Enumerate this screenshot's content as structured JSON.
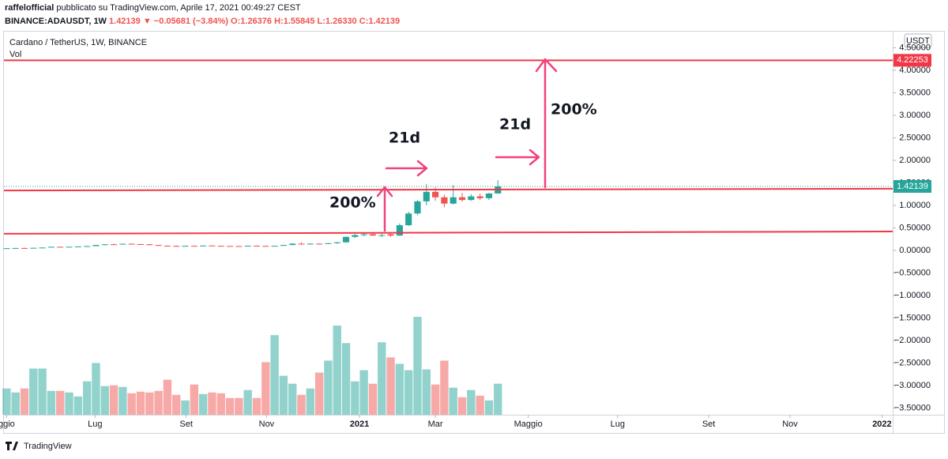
{
  "header": {
    "author": "raffelofficial",
    "published": "pubblicato su TradingView.com, Aprile 17, 2021 00:49:27 CEST",
    "symbol": "BINANCE:ADAUSDT, 1W",
    "last": "1.42139",
    "change": "▼ −0.05681 (−3.84%)",
    "o": "O:1.26376",
    "h": "H:1.55845",
    "l": "L:1.26330",
    "c": "C:1.42139"
  },
  "footer": {
    "brand": "TradingView"
  },
  "chart_data": {
    "type": "candlestick",
    "legend": "Cardano / TetherUS, 1W, BINANCE",
    "volume_label": "Vol",
    "currency": "USDT",
    "up_color": "#26a69a",
    "down_color": "#ef5350",
    "level_color": "#f23645",
    "arrow_color": "#f0437d",
    "x": [
      0,
      1,
      2,
      3,
      4,
      5,
      6,
      7,
      8,
      9,
      10,
      11,
      12,
      13,
      14,
      15,
      16,
      17,
      18,
      19,
      20,
      21,
      22,
      23,
      24,
      25,
      26,
      27,
      28,
      29,
      30,
      31,
      32,
      33,
      34,
      35,
      36,
      37,
      38,
      39,
      40,
      41,
      42,
      43,
      44,
      45,
      46,
      47,
      48,
      49,
      50,
      51,
      52,
      53,
      54,
      55
    ],
    "open": [
      0.048,
      0.05,
      0.054,
      0.052,
      0.058,
      0.064,
      0.08,
      0.078,
      0.082,
      0.088,
      0.096,
      0.12,
      0.136,
      0.132,
      0.148,
      0.14,
      0.136,
      0.12,
      0.104,
      0.1,
      0.096,
      0.102,
      0.1,
      0.108,
      0.102,
      0.098,
      0.096,
      0.094,
      0.104,
      0.1,
      0.098,
      0.102,
      0.12,
      0.15,
      0.14,
      0.15,
      0.148,
      0.16,
      0.18,
      0.3,
      0.34,
      0.36,
      0.33,
      0.36,
      0.33,
      0.56,
      0.82,
      1.09,
      1.3,
      1.18,
      1.04,
      1.18,
      1.12,
      1.2,
      1.16,
      1.26376
    ],
    "high": [
      0.052,
      0.056,
      0.058,
      0.06,
      0.066,
      0.082,
      0.086,
      0.084,
      0.092,
      0.1,
      0.124,
      0.14,
      0.15,
      0.152,
      0.156,
      0.148,
      0.14,
      0.124,
      0.112,
      0.108,
      0.106,
      0.108,
      0.112,
      0.112,
      0.106,
      0.102,
      0.1,
      0.108,
      0.11,
      0.104,
      0.104,
      0.124,
      0.16,
      0.18,
      0.16,
      0.158,
      0.164,
      0.19,
      0.31,
      0.37,
      0.4,
      0.39,
      0.38,
      0.38,
      0.6,
      0.86,
      1.12,
      1.47,
      1.4,
      1.24,
      1.45,
      1.28,
      1.25,
      1.26,
      1.28,
      1.55845
    ],
    "low": [
      0.044,
      0.048,
      0.05,
      0.05,
      0.055,
      0.062,
      0.072,
      0.074,
      0.078,
      0.084,
      0.094,
      0.114,
      0.128,
      0.128,
      0.13,
      0.13,
      0.11,
      0.098,
      0.092,
      0.092,
      0.09,
      0.096,
      0.098,
      0.098,
      0.094,
      0.092,
      0.088,
      0.092,
      0.096,
      0.094,
      0.094,
      0.1,
      0.118,
      0.126,
      0.132,
      0.136,
      0.14,
      0.15,
      0.17,
      0.28,
      0.31,
      0.32,
      0.3,
      0.3,
      0.32,
      0.54,
      0.78,
      1.0,
      1.1,
      0.96,
      1.02,
      1.08,
      1.1,
      1.12,
      1.12,
      1.2633
    ],
    "close": [
      0.05,
      0.054,
      0.052,
      0.058,
      0.064,
      0.08,
      0.078,
      0.082,
      0.088,
      0.096,
      0.12,
      0.136,
      0.132,
      0.148,
      0.14,
      0.136,
      0.12,
      0.104,
      0.1,
      0.096,
      0.102,
      0.1,
      0.108,
      0.102,
      0.098,
      0.096,
      0.094,
      0.104,
      0.1,
      0.098,
      0.102,
      0.12,
      0.15,
      0.14,
      0.15,
      0.148,
      0.16,
      0.18,
      0.3,
      0.34,
      0.36,
      0.33,
      0.34,
      0.33,
      0.56,
      0.82,
      1.09,
      1.3,
      1.18,
      1.04,
      1.18,
      1.12,
      1.2,
      1.16,
      1.26376,
      1.42139
    ],
    "volume": [
      33,
      28,
      33,
      58,
      58,
      30,
      30,
      28,
      23,
      42,
      65,
      36,
      37,
      35,
      27,
      29,
      28,
      30,
      44,
      25,
      18,
      38,
      26,
      28,
      27,
      21,
      21,
      31,
      21,
      66,
      100,
      49,
      39,
      25,
      33,
      53,
      68,
      112,
      90,
      42,
      56,
      39,
      91,
      72,
      64,
      56,
      123,
      57,
      38,
      68,
      34,
      22,
      31,
      24,
      18,
      39
    ],
    "xlim": [
      -0.3,
      99.2
    ],
    "xticks": [
      {
        "value": 0,
        "label": "ggio"
      },
      {
        "value": 9.9,
        "label": "Lug"
      },
      {
        "value": 20.1,
        "label": "Set"
      },
      {
        "value": 29.1,
        "label": "Nov"
      },
      {
        "value": 39.5,
        "label": "2021"
      },
      {
        "value": 48,
        "label": "Mar"
      },
      {
        "value": 58.4,
        "label": "Maggio"
      },
      {
        "value": 68.4,
        "label": "Lug"
      },
      {
        "value": 78.6,
        "label": "Set"
      },
      {
        "value": 87.7,
        "label": "Nov"
      },
      {
        "value": 98,
        "label": "2022"
      }
    ],
    "ylim": [
      -3.65,
      4.86
    ],
    "yticks": [
      {
        "value": 4.5,
        "label": "4.50000"
      },
      {
        "value": 4,
        "label": "4.00000"
      },
      {
        "value": 3.5,
        "label": "3.50000"
      },
      {
        "value": 3,
        "label": "3.00000"
      },
      {
        "value": 2.5,
        "label": "2.50000"
      },
      {
        "value": 2,
        "label": "2.00000"
      },
      {
        "value": 1.5,
        "label": "1.50000"
      },
      {
        "value": 1,
        "label": "1.00000"
      },
      {
        "value": 0.5,
        "label": "0.50000"
      },
      {
        "value": 0,
        "label": "0.00000"
      },
      {
        "value": -0.5,
        "label": "−0.50000"
      },
      {
        "value": -1,
        "label": "−1.00000"
      },
      {
        "value": -1.5,
        "label": "−1.50000"
      },
      {
        "value": -2,
        "label": "−2.00000"
      },
      {
        "value": -2.5,
        "label": "−2.50000"
      },
      {
        "value": -3,
        "label": "−3.00000"
      },
      {
        "value": -3.5,
        "label": "−3.50000"
      }
    ],
    "hlines": [
      4.22253
    ],
    "trendlines": [
      [
        1.33,
        1.37
      ],
      [
        0.37,
        0.42
      ]
    ],
    "annotations": [
      {
        "text": "200%"
      },
      {
        "text": "21d"
      },
      {
        "text": "21d"
      },
      {
        "text": "200%"
      }
    ]
  }
}
